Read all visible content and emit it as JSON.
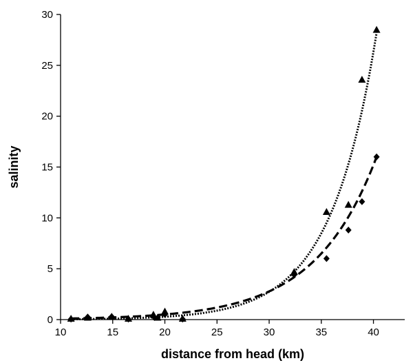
{
  "chart_data": {
    "type": "scatter",
    "title": "",
    "xlabel": "distance from head (km)",
    "ylabel": "salinity",
    "xlim": [
      10,
      43
    ],
    "ylim": [
      0,
      30
    ],
    "xticks": [
      10,
      15,
      20,
      25,
      30,
      35,
      40
    ],
    "yticks": [
      0,
      5,
      10,
      15,
      20,
      25,
      30
    ],
    "grid": false,
    "legend": "none",
    "series": [
      {
        "marker": "triangle",
        "color": "#000000",
        "points": [
          {
            "x": 11.0,
            "y": 0.1
          },
          {
            "x": 12.6,
            "y": 0.2
          },
          {
            "x": 14.9,
            "y": 0.3
          },
          {
            "x": 16.5,
            "y": 0.1
          },
          {
            "x": 18.9,
            "y": 0.5
          },
          {
            "x": 19.3,
            "y": 0.2
          },
          {
            "x": 20.0,
            "y": 0.8
          },
          {
            "x": 21.7,
            "y": 0.1
          },
          {
            "x": 32.4,
            "y": 4.7
          },
          {
            "x": 35.5,
            "y": 10.6
          },
          {
            "x": 37.6,
            "y": 11.3
          },
          {
            "x": 38.9,
            "y": 23.6
          },
          {
            "x": 40.3,
            "y": 28.5
          }
        ]
      },
      {
        "marker": "diamond",
        "color": "#000000",
        "points": [
          {
            "x": 11.0,
            "y": 0.05
          },
          {
            "x": 12.6,
            "y": 0.25
          },
          {
            "x": 14.9,
            "y": 0.3
          },
          {
            "x": 16.5,
            "y": 0.05
          },
          {
            "x": 19.0,
            "y": 0.2
          },
          {
            "x": 20.0,
            "y": 0.5
          },
          {
            "x": 21.7,
            "y": 0.05
          },
          {
            "x": 32.4,
            "y": 4.4
          },
          {
            "x": 35.5,
            "y": 6.0
          },
          {
            "x": 37.6,
            "y": 8.8
          },
          {
            "x": 38.9,
            "y": 11.6
          },
          {
            "x": 40.3,
            "y": 16.0
          }
        ]
      }
    ],
    "fits": [
      {
        "style": "dotted",
        "model": "exponential",
        "x_range": [
          11,
          40.3
        ],
        "y_at_range_end": 28.2,
        "y_at_x32": 4.3
      },
      {
        "style": "dashed",
        "model": "exponential",
        "x_range": [
          11,
          40.3
        ],
        "y_at_range_end": 16.0,
        "y_at_x32": 3.9
      }
    ]
  }
}
